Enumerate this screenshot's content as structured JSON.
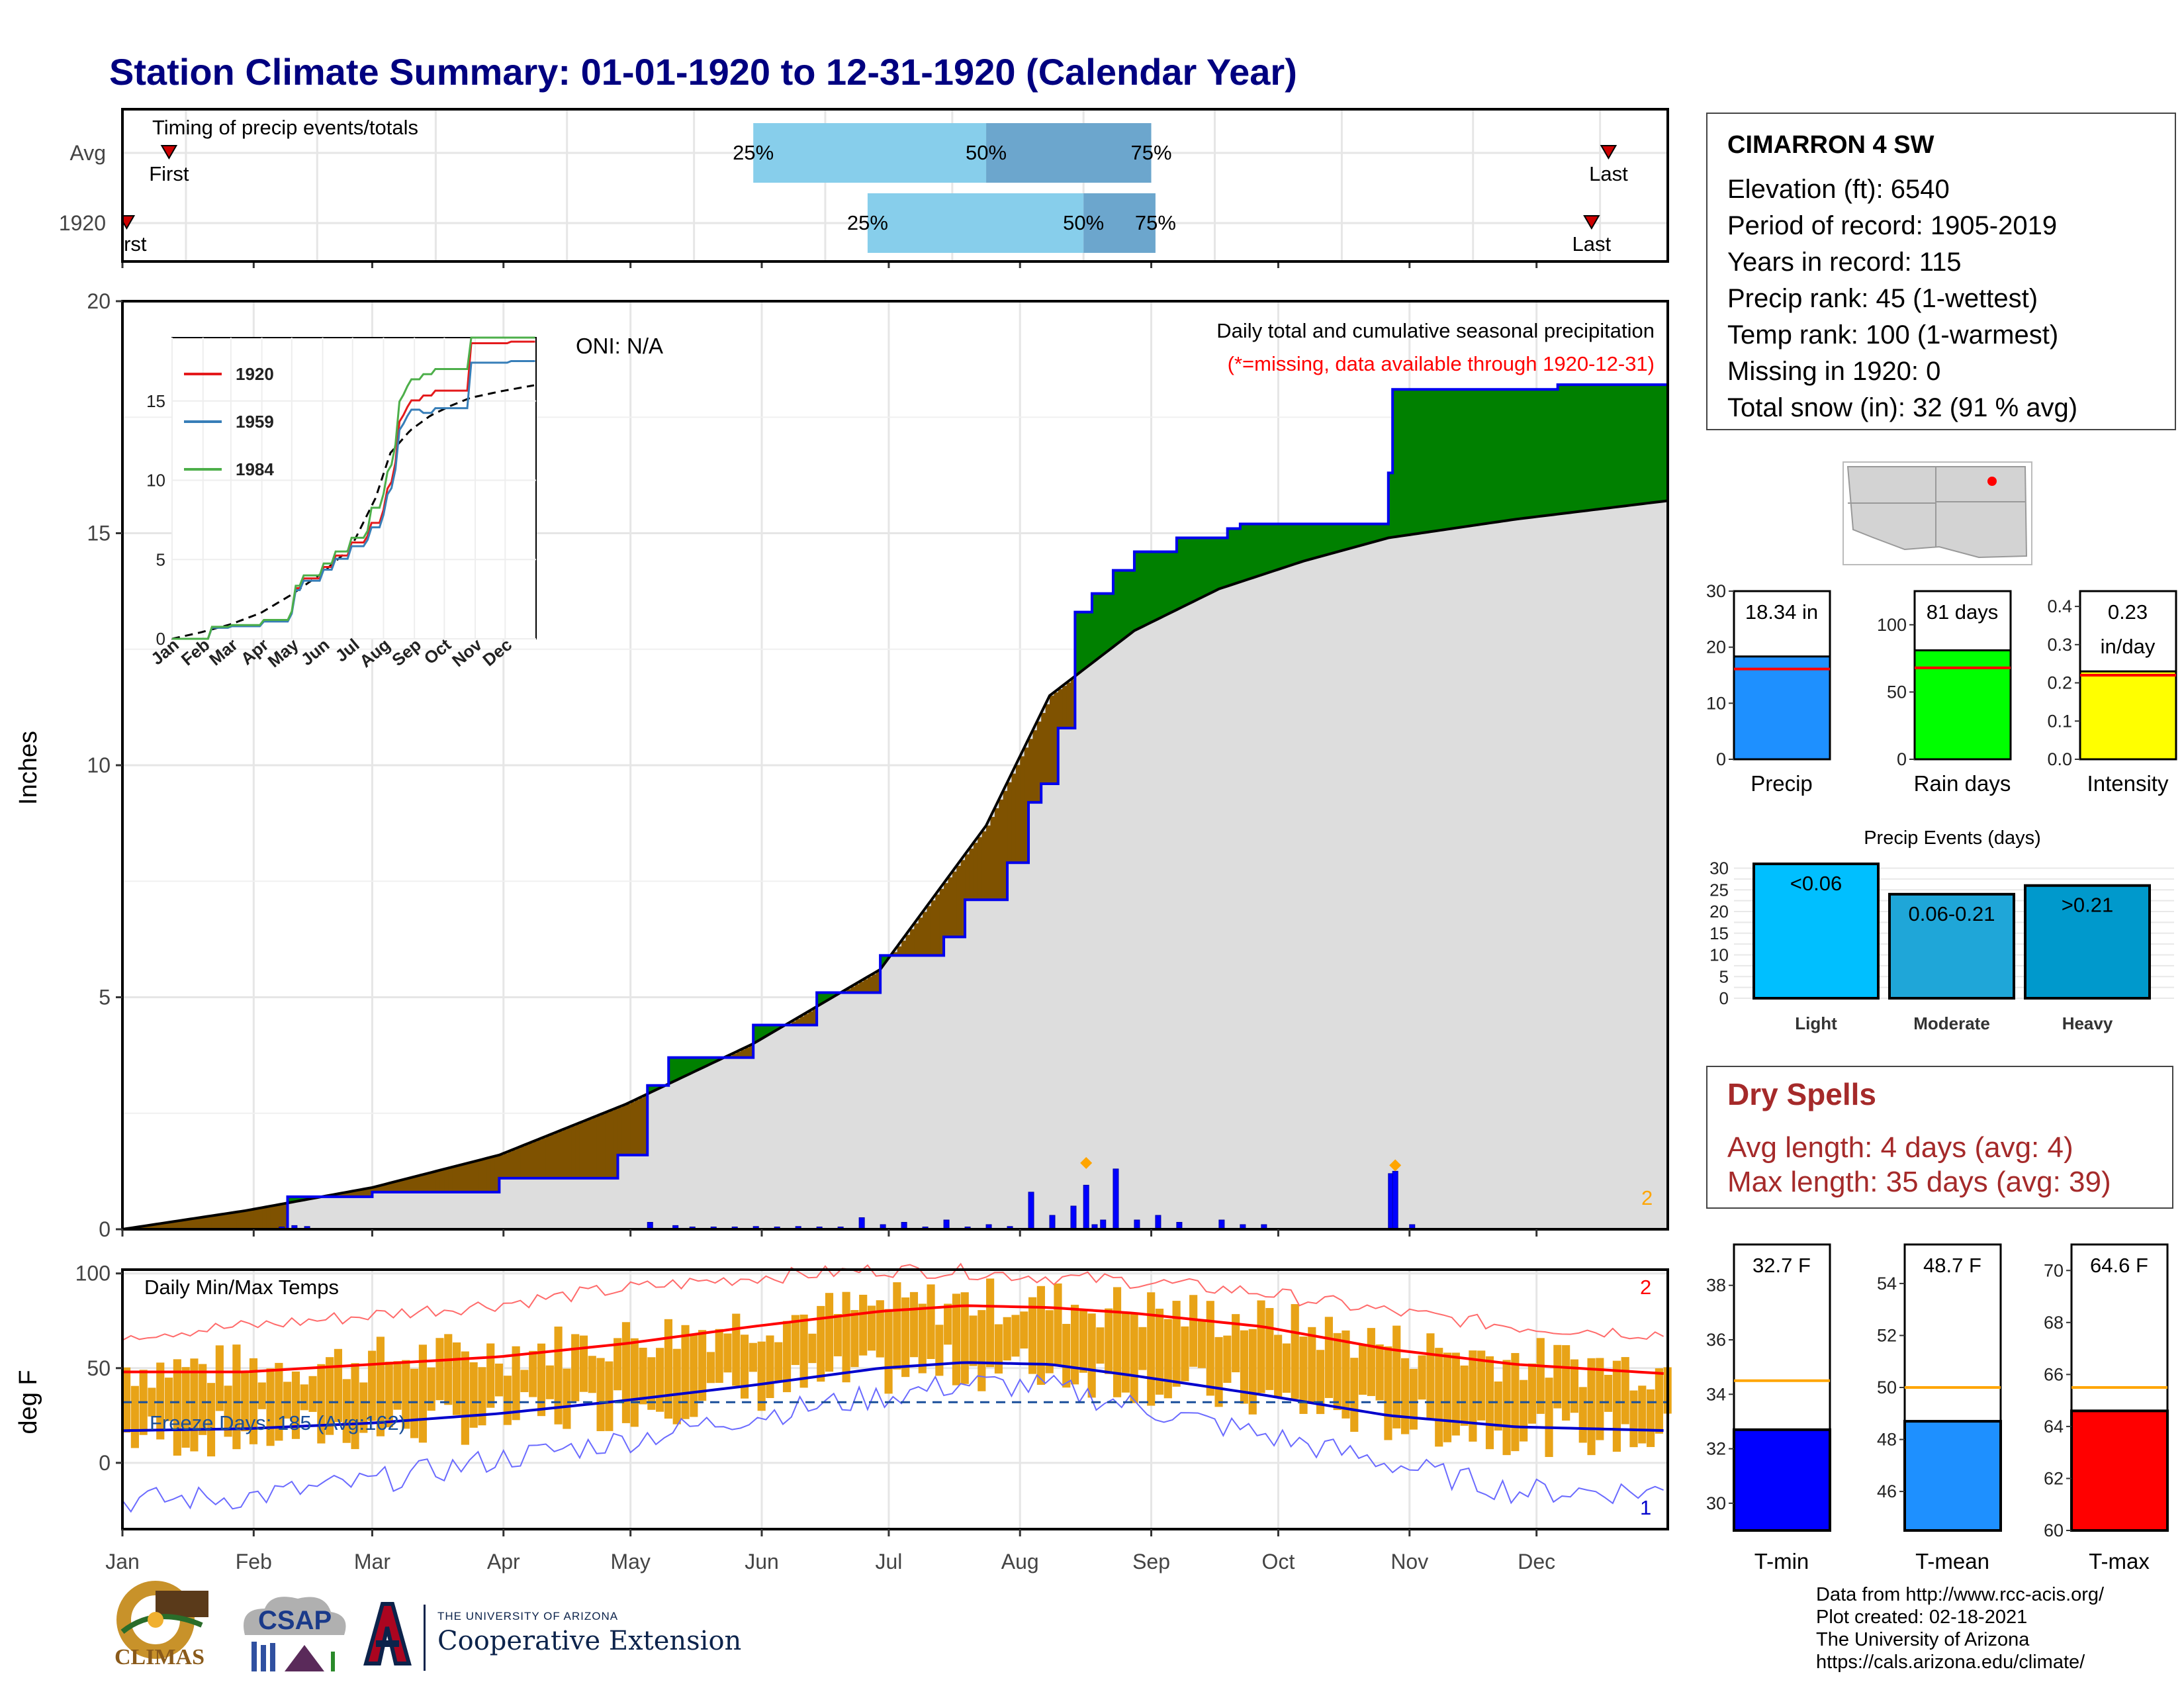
{
  "title": "Station Climate Summary: 01-01-1920 to 12-31-1920 (Calendar Year)",
  "colors": {
    "title": "#000080",
    "precip_area": "#dddddd",
    "above": "#008000",
    "below": "#7f5200",
    "cum_line": "#0000ee",
    "tmax": "#ff0000",
    "tmin": "#0000cc",
    "bars": "#e8a317"
  },
  "timing": {
    "label": "Timing of precip events/totals",
    "rows": [
      {
        "name": "Avg",
        "first_label": "First",
        "last_label": "Last",
        "p25": "25%",
        "p50": "50%",
        "p75": "75%",
        "first_doy": 12,
        "last_doy": 352,
        "q25_doy": 150,
        "q50_doy": 205,
        "q75_doy": 244
      },
      {
        "name": "1920",
        "first_label": "First",
        "last_label": "Last",
        "p25": "25%",
        "p50": "50%",
        "p75": "75%",
        "first_doy": 2,
        "last_doy": 348,
        "q25_doy": 177,
        "q50_doy": 228,
        "q75_doy": 245
      }
    ]
  },
  "main": {
    "ylabel": "Inches",
    "oni": "ONI: N/A",
    "subtitle": "Daily total and cumulative seasonal precipitation",
    "missing_note": "(*=missing, data available through 1920-12-31)",
    "corner_count": "2",
    "yticks": [
      "0",
      "5",
      "10",
      "15",
      "20"
    ]
  },
  "chart_data": [
    {
      "type": "area",
      "title": "Daily total and cumulative seasonal precipitation",
      "ylabel": "Inches",
      "ylim": [
        0,
        20
      ],
      "x_months": [
        "Jan",
        "Feb",
        "Mar",
        "Apr",
        "May",
        "Jun",
        "Jul",
        "Aug",
        "Sep",
        "Oct",
        "Nov",
        "Dec"
      ],
      "series": [
        {
          "name": "1920 cumulative",
          "x_doy": [
            1,
            40,
            60,
            90,
            118,
            125,
            130,
            150,
            165,
            180,
            195,
            200,
            210,
            215,
            218,
            222,
            226,
            230,
            235,
            240,
            250,
            262,
            265,
            274,
            300,
            301,
            320,
            340,
            366
          ],
          "y": [
            0,
            0.7,
            0.8,
            1.1,
            1.6,
            3.1,
            3.7,
            4.4,
            5.1,
            5.9,
            6.3,
            7.1,
            7.9,
            9.2,
            9.6,
            10.8,
            13.3,
            13.7,
            14.2,
            14.6,
            14.9,
            15.1,
            15.2,
            15.2,
            16.3,
            18.1,
            18.1,
            18.2,
            18.3
          ]
        },
        {
          "name": "Average cumulative",
          "x_doy": [
            1,
            30,
            60,
            90,
            120,
            150,
            180,
            205,
            220,
            240,
            260,
            280,
            300,
            330,
            366
          ],
          "y": [
            0,
            0.4,
            0.9,
            1.6,
            2.7,
            4.0,
            5.6,
            8.7,
            11.5,
            12.9,
            13.8,
            14.4,
            14.9,
            15.3,
            15.7
          ]
        }
      ]
    },
    {
      "type": "bar",
      "title": "Daily precipitation",
      "x_doy": [
        38,
        41,
        44,
        125,
        131,
        135,
        140,
        145,
        150,
        155,
        160,
        165,
        170,
        175,
        180,
        185,
        190,
        195,
        200,
        205,
        210,
        215,
        220,
        225,
        228,
        230,
        232,
        235,
        240,
        245,
        250,
        260,
        265,
        270,
        300,
        301,
        305
      ],
      "values": [
        0.05,
        0.08,
        0.06,
        0.15,
        0.08,
        0.05,
        0.05,
        0.05,
        0.06,
        0.05,
        0.06,
        0.05,
        0.05,
        0.25,
        0.1,
        0.15,
        0.05,
        0.2,
        0.05,
        0.1,
        0.06,
        0.8,
        0.3,
        0.5,
        0.95,
        0.1,
        0.2,
        1.3,
        0.2,
        0.3,
        0.15,
        0.2,
        0.1,
        0.1,
        1.2,
        1.25,
        0.1
      ]
    },
    {
      "type": "line",
      "title": "Daily Min/Max Temps",
      "ylabel": "deg F",
      "ylim": [
        -35,
        102
      ],
      "yticks": [
        "0",
        "50",
        "100"
      ],
      "freeze_line": 32,
      "series": [
        {
          "name": "Avg max",
          "x_doy": [
            1,
            30,
            60,
            90,
            120,
            150,
            180,
            200,
            220,
            240,
            270,
            300,
            330,
            366
          ],
          "y": [
            48,
            48,
            52,
            56,
            63,
            72,
            80,
            83,
            82,
            79,
            72,
            60,
            52,
            47
          ]
        },
        {
          "name": "Avg min",
          "x_doy": [
            1,
            30,
            60,
            90,
            120,
            150,
            180,
            200,
            220,
            240,
            270,
            300,
            330,
            366
          ],
          "y": [
            17,
            18,
            21,
            26,
            33,
            41,
            50,
            53,
            52,
            46,
            36,
            25,
            19,
            17
          ]
        },
        {
          "name": "Record max",
          "x_doy": [
            1,
            30,
            60,
            90,
            120,
            150,
            180,
            200,
            220,
            240,
            270,
            300,
            330,
            366
          ],
          "y": [
            68,
            72,
            78,
            84,
            92,
            98,
            102,
            101,
            98,
            96,
            90,
            80,
            72,
            68
          ]
        },
        {
          "name": "Record min",
          "x_doy": [
            1,
            30,
            60,
            90,
            120,
            150,
            180,
            200,
            220,
            240,
            270,
            300,
            330,
            366
          ],
          "y": [
            -20,
            -18,
            -10,
            2,
            12,
            25,
            35,
            42,
            40,
            30,
            15,
            0,
            -15,
            -15
          ]
        }
      ]
    },
    {
      "type": "bar",
      "title": "Seasonal totals",
      "categories": [
        "Precip",
        "Rain days",
        "Intensity"
      ],
      "values": [
        18.34,
        81,
        0.23
      ],
      "averages": [
        16.1,
        68,
        0.22
      ]
    },
    {
      "type": "bar",
      "title": "Precip Events (days)",
      "categories": [
        "Light",
        "Moderate",
        "Heavy"
      ],
      "values": [
        31,
        24,
        26
      ],
      "ylim": [
        0,
        30
      ]
    },
    {
      "type": "bar",
      "title": "Temperatures",
      "categories": [
        "T-min",
        "T-mean",
        "T-max"
      ],
      "values": [
        32.7,
        48.7,
        64.6
      ],
      "averages": [
        34.5,
        50.0,
        65.5
      ]
    }
  ],
  "inset": {
    "legend": [
      "1920",
      "1959",
      "1984"
    ],
    "months": [
      "Jan",
      "Feb",
      "Mar",
      "Apr",
      "May",
      "Jun",
      "Jul",
      "Aug",
      "Sep",
      "Oct",
      "Nov",
      "Dec"
    ],
    "yticks": [
      "0",
      "5",
      "10",
      "15"
    ]
  },
  "temps": {
    "title": "Daily Min/Max Temps",
    "freeze_label": "Freeze Days: 185 (Avg:162)",
    "corner_top": "2",
    "corner_bottom": "1",
    "ylabel": "deg F"
  },
  "station": {
    "name": "CIMARRON 4 SW",
    "lines": [
      "Elevation (ft): 6540",
      "Period of record: 1905-2019",
      "Years in record: 115",
      "Precip rank: 45 (1-wettest)",
      "Temp rank: 100 (1-warmest)",
      "Missing in 1920: 0",
      "Total snow (in): 32 (91 % avg)"
    ]
  },
  "minibars": {
    "precip": {
      "label": "Precip",
      "value_text": "18.34 in",
      "yticks": [
        "0",
        "10",
        "20",
        "30"
      ]
    },
    "raindays": {
      "label": "Rain days",
      "value_text": "81 days",
      "yticks": [
        "0",
        "50",
        "100"
      ]
    },
    "intensity": {
      "label": "Intensity",
      "value_text": "0.23",
      "value_text2": "in/day",
      "yticks": [
        "0.0",
        "0.1",
        "0.2",
        "0.3",
        "0.4"
      ]
    }
  },
  "events": {
    "title": "Precip Events (days)",
    "labels": [
      "Light",
      "Moderate",
      "Heavy"
    ],
    "bin_labels": [
      "<0.06",
      "0.06-0.21",
      ">0.21"
    ],
    "yticks": [
      "0",
      "5",
      "10",
      "15",
      "20",
      "25",
      "30"
    ]
  },
  "dry": {
    "title": "Dry Spells",
    "avg": "Avg length: 4 days (avg: 4)",
    "max": "Max length: 35 days (avg: 39)"
  },
  "tbars": {
    "tmin": {
      "label": "T-min",
      "value_text": "32.7 F",
      "yticks": [
        "30",
        "32",
        "34",
        "36",
        "38"
      ]
    },
    "tmean": {
      "label": "T-mean",
      "value_text": "48.7 F",
      "yticks": [
        "46",
        "48",
        "50",
        "52",
        "54"
      ]
    },
    "tmax": {
      "label": "T-max",
      "value_text": "64.6 F",
      "yticks": [
        "60",
        "62",
        "64",
        "66",
        "68",
        "70"
      ]
    }
  },
  "credits": [
    "Data from http://www.rcc-acis.org/",
    "Plot created: 02-18-2021",
    "The University of Arizona",
    "https://cals.arizona.edu/climate/"
  ],
  "logos": {
    "climas": "CLIMAS",
    "csap": "CSAP",
    "ua_line1": "THE UNIVERSITY OF ARIZONA",
    "ua_line2": "Cooperative Extension"
  }
}
